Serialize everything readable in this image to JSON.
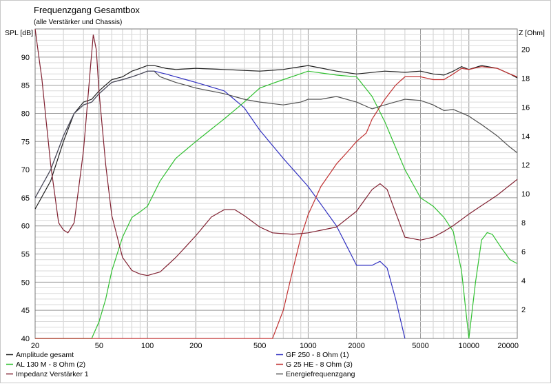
{
  "chart_data": {
    "type": "line",
    "title": "Frequenzgang Gesamtbox",
    "subtitle": "(alle Verstärker und Chassis)",
    "ylabel": "SPL [dB]",
    "y2label": "Z [Ohm]",
    "xscale": "log",
    "xlim": [
      20,
      20000
    ],
    "ylim": [
      40,
      95
    ],
    "y2lim": [
      0,
      21.4
    ],
    "x_ticks": [
      20,
      50,
      100,
      200,
      500,
      1000,
      2000,
      5000,
      10000,
      20000
    ],
    "y_ticks": [
      40,
      45,
      50,
      55,
      60,
      65,
      70,
      75,
      80,
      85,
      90
    ],
    "y2_ticks": [
      2,
      4,
      6,
      8,
      10,
      12,
      14,
      16,
      18,
      20
    ],
    "grid": true,
    "legend_position": "bottom",
    "series": [
      {
        "name": "Amplitude gesamt",
        "color": "#202020",
        "axis": "left",
        "points": [
          [
            20,
            63
          ],
          [
            25,
            68
          ],
          [
            30,
            75
          ],
          [
            35,
            80
          ],
          [
            40,
            82
          ],
          [
            45,
            82.5
          ],
          [
            50,
            84
          ],
          [
            60,
            86
          ],
          [
            70,
            86.5
          ],
          [
            80,
            87.5
          ],
          [
            90,
            88
          ],
          [
            100,
            88.5
          ],
          [
            110,
            88.5
          ],
          [
            130,
            88
          ],
          [
            150,
            87.8
          ],
          [
            200,
            88
          ],
          [
            300,
            87.8
          ],
          [
            500,
            87.5
          ],
          [
            700,
            87.8
          ],
          [
            1000,
            88.5
          ],
          [
            1500,
            87.5
          ],
          [
            2000,
            87
          ],
          [
            3000,
            87.5
          ],
          [
            4000,
            87.3
          ],
          [
            5000,
            87.5
          ],
          [
            6000,
            87
          ],
          [
            7000,
            86.8
          ],
          [
            8000,
            87.5
          ],
          [
            9000,
            88.3
          ],
          [
            10000,
            87.8
          ],
          [
            12000,
            88.5
          ],
          [
            15000,
            88
          ],
          [
            18000,
            87
          ],
          [
            20000,
            86.3
          ]
        ]
      },
      {
        "name": "GF 250 - 8 Ohm (1)",
        "color": "#3030c0",
        "axis": "left",
        "points": [
          [
            20,
            65
          ],
          [
            25,
            70
          ],
          [
            30,
            76
          ],
          [
            35,
            80
          ],
          [
            40,
            81.5
          ],
          [
            45,
            82
          ],
          [
            50,
            83.5
          ],
          [
            60,
            85.5
          ],
          [
            70,
            86
          ],
          [
            80,
            86.5
          ],
          [
            90,
            87
          ],
          [
            100,
            87.5
          ],
          [
            110,
            87.5
          ],
          [
            130,
            87
          ],
          [
            150,
            86.5
          ],
          [
            200,
            85.5
          ],
          [
            300,
            84
          ],
          [
            400,
            81
          ],
          [
            500,
            77
          ],
          [
            700,
            72
          ],
          [
            1000,
            67
          ],
          [
            1500,
            60
          ],
          [
            2000,
            53
          ],
          [
            2500,
            53
          ],
          [
            2800,
            53.7
          ],
          [
            3100,
            52.5
          ],
          [
            3500,
            47
          ],
          [
            4000,
            40
          ]
        ]
      },
      {
        "name": "AL 130 M - 8 Ohm (2)",
        "color": "#30c030",
        "axis": "left",
        "points": [
          [
            20,
            40
          ],
          [
            45,
            40
          ],
          [
            50,
            43
          ],
          [
            55,
            47
          ],
          [
            60,
            52
          ],
          [
            70,
            58
          ],
          [
            80,
            61.5
          ],
          [
            90,
            62.5
          ],
          [
            100,
            63.5
          ],
          [
            120,
            68
          ],
          [
            150,
            72
          ],
          [
            200,
            75
          ],
          [
            300,
            79
          ],
          [
            400,
            82
          ],
          [
            500,
            84.5
          ],
          [
            700,
            86
          ],
          [
            1000,
            87.5
          ],
          [
            1500,
            86.8
          ],
          [
            2000,
            86.5
          ],
          [
            2500,
            83
          ],
          [
            3000,
            78.5
          ],
          [
            4000,
            70
          ],
          [
            5000,
            65
          ],
          [
            6000,
            63.5
          ],
          [
            7000,
            61.5
          ],
          [
            8000,
            59
          ],
          [
            9000,
            52
          ],
          [
            10000,
            40
          ],
          [
            11000,
            50
          ],
          [
            12000,
            57.5
          ],
          [
            13000,
            58.8
          ],
          [
            14000,
            58.5
          ],
          [
            16000,
            56
          ],
          [
            18000,
            54
          ],
          [
            20000,
            53.3
          ]
        ]
      },
      {
        "name": "G 25 HE - 8 Ohm (3)",
        "color": "#c03030",
        "axis": "left",
        "points": [
          [
            20,
            40
          ],
          [
            600,
            40
          ],
          [
            700,
            45
          ],
          [
            800,
            52
          ],
          [
            900,
            58
          ],
          [
            1000,
            62
          ],
          [
            1200,
            67
          ],
          [
            1500,
            71
          ],
          [
            1800,
            73.5
          ],
          [
            2000,
            75
          ],
          [
            2300,
            76.5
          ],
          [
            2500,
            79
          ],
          [
            3000,
            82.5
          ],
          [
            3500,
            85
          ],
          [
            4000,
            86.5
          ],
          [
            5000,
            86.5
          ],
          [
            6000,
            86
          ],
          [
            7000,
            86
          ],
          [
            8000,
            87
          ],
          [
            9000,
            88
          ],
          [
            10000,
            87.8
          ],
          [
            12000,
            88.3
          ],
          [
            15000,
            88
          ],
          [
            18000,
            87
          ],
          [
            20000,
            86.5
          ]
        ]
      },
      {
        "name": "Impedanz Verstärker 1",
        "color": "#802030",
        "axis": "right",
        "points": [
          [
            20,
            21.4
          ],
          [
            22,
            18
          ],
          [
            25,
            12
          ],
          [
            28,
            8
          ],
          [
            30,
            7.5
          ],
          [
            32,
            7.3
          ],
          [
            35,
            8
          ],
          [
            40,
            13
          ],
          [
            44,
            18.5
          ],
          [
            46,
            21
          ],
          [
            48,
            20
          ],
          [
            50,
            17
          ],
          [
            55,
            12
          ],
          [
            60,
            8.5
          ],
          [
            70,
            5.6
          ],
          [
            80,
            4.7
          ],
          [
            90,
            4.45
          ],
          [
            100,
            4.35
          ],
          [
            120,
            4.6
          ],
          [
            150,
            5.6
          ],
          [
            200,
            7.1
          ],
          [
            250,
            8.4
          ],
          [
            300,
            8.9
          ],
          [
            350,
            8.9
          ],
          [
            400,
            8.5
          ],
          [
            500,
            7.7
          ],
          [
            600,
            7.3
          ],
          [
            800,
            7.2
          ],
          [
            1000,
            7.3
          ],
          [
            1500,
            7.7
          ],
          [
            2000,
            8.8
          ],
          [
            2500,
            10.3
          ],
          [
            2800,
            10.7
          ],
          [
            3100,
            10.3
          ],
          [
            3500,
            8.7
          ],
          [
            4000,
            7
          ],
          [
            5000,
            6.8
          ],
          [
            6000,
            7
          ],
          [
            7000,
            7.4
          ],
          [
            8000,
            7.8
          ],
          [
            10000,
            8.6
          ],
          [
            15000,
            9.9
          ],
          [
            20000,
            11
          ]
        ]
      },
      {
        "name": "Energiefrequenzgang",
        "color": "#505050",
        "axis": "left",
        "points": [
          [
            20,
            65
          ],
          [
            25,
            70
          ],
          [
            30,
            76
          ],
          [
            35,
            80
          ],
          [
            40,
            81.5
          ],
          [
            45,
            82
          ],
          [
            50,
            83.5
          ],
          [
            60,
            85.5
          ],
          [
            70,
            86
          ],
          [
            80,
            86.5
          ],
          [
            90,
            87
          ],
          [
            100,
            87.5
          ],
          [
            110,
            87.5
          ],
          [
            120,
            86.5
          ],
          [
            150,
            85.5
          ],
          [
            200,
            84.5
          ],
          [
            300,
            83.5
          ],
          [
            400,
            82.5
          ],
          [
            500,
            82
          ],
          [
            700,
            81.5
          ],
          [
            900,
            82
          ],
          [
            1000,
            82.5
          ],
          [
            1200,
            82.5
          ],
          [
            1500,
            83
          ],
          [
            2000,
            82
          ],
          [
            2500,
            80.8
          ],
          [
            3000,
            81.5
          ],
          [
            4000,
            82.5
          ],
          [
            5000,
            82.3
          ],
          [
            6000,
            81.5
          ],
          [
            7000,
            80.5
          ],
          [
            8000,
            80.7
          ],
          [
            10000,
            79.5
          ],
          [
            12000,
            78
          ],
          [
            15000,
            76
          ],
          [
            18000,
            74
          ],
          [
            20000,
            73
          ]
        ]
      }
    ]
  }
}
